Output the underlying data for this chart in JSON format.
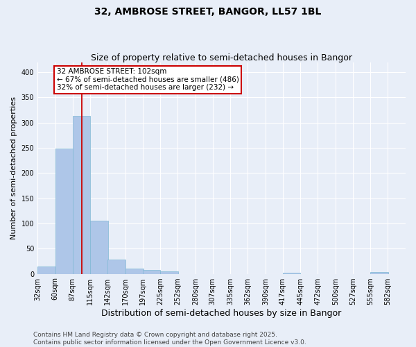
{
  "title": "32, AMBROSE STREET, BANGOR, LL57 1BL",
  "subtitle": "Size of property relative to semi-detached houses in Bangor",
  "xlabel": "Distribution of semi-detached houses by size in Bangor",
  "ylabel": "Number of semi-detached properties",
  "bins": [
    32,
    60,
    87,
    115,
    142,
    170,
    197,
    225,
    252,
    280,
    307,
    335,
    362,
    390,
    417,
    445,
    472,
    500,
    527,
    555,
    582
  ],
  "counts": [
    15,
    248,
    313,
    105,
    28,
    10,
    7,
    5,
    0,
    0,
    0,
    0,
    0,
    0,
    2,
    0,
    0,
    0,
    0,
    3,
    0
  ],
  "bar_color": "#aec6e8",
  "bar_edge_color": "#7fb8d4",
  "property_sqm": 102,
  "property_line_color": "#cc0000",
  "annotation_text": "32 AMBROSE STREET: 102sqm\n← 67% of semi-detached houses are smaller (486)\n32% of semi-detached houses are larger (232) →",
  "annotation_box_color": "#ffffff",
  "annotation_box_edge_color": "#cc0000",
  "ylim": [
    0,
    420
  ],
  "yticks": [
    0,
    50,
    100,
    150,
    200,
    250,
    300,
    350,
    400
  ],
  "background_color": "#e8eef8",
  "plot_bg_color": "#e8eef8",
  "footer_line1": "Contains HM Land Registry data © Crown copyright and database right 2025.",
  "footer_line2": "Contains public sector information licensed under the Open Government Licence v3.0.",
  "title_fontsize": 10,
  "subtitle_fontsize": 9,
  "xlabel_fontsize": 9,
  "ylabel_fontsize": 8,
  "tick_fontsize": 7,
  "annotation_fontsize": 7.5,
  "footer_fontsize": 6.5
}
